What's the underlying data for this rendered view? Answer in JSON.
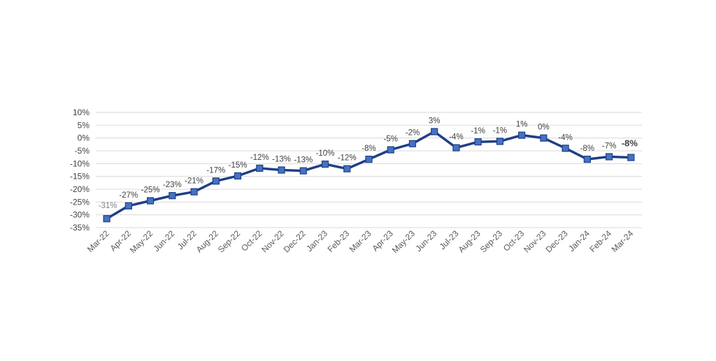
{
  "chart_data": {
    "type": "line",
    "title": "",
    "xlabel": "",
    "ylabel": "",
    "categories": [
      "Mar-22",
      "Apr-22",
      "May-22",
      "Jun-22",
      "Jul-22",
      "Aug-22",
      "Sep-22",
      "Oct-22",
      "Nov-22",
      "Dec-22",
      "Jan-23",
      "Feb-23",
      "Mar-23",
      "Apr-23",
      "May-23",
      "Jun-23",
      "Jul-23",
      "Aug-23",
      "Sep-23",
      "Oct-23",
      "Nov-23",
      "Dec-23",
      "Jan-24",
      "Feb-24",
      "Mar-24"
    ],
    "series": [
      {
        "values": [
          -31.5,
          -26.5,
          -24.5,
          -22.5,
          -21,
          -16.8,
          -14.8,
          -11.8,
          -12.5,
          -12.8,
          -10.2,
          -12,
          -8.3,
          -4.6,
          -2.2,
          2.5,
          -3.8,
          -1.5,
          -1.3,
          1.1,
          0,
          -4,
          -8.3,
          -7.3,
          -7.6
        ],
        "labels": [
          "-31%",
          "-27%",
          "-25%",
          "-23%",
          "-21%",
          "-17%",
          "-15%",
          "-12%",
          "-13%",
          "-13%",
          "-10%",
          "-12%",
          "-8%",
          "-5%",
          "-2%",
          "3%",
          "-4%",
          "-1%",
          "-1%",
          "1%",
          "0%",
          "-4%",
          "-8%",
          "-7%",
          "-8%"
        ]
      }
    ],
    "y_ticks": [
      "10%",
      "5%",
      "0%",
      "-5%",
      "-10%",
      "-15%",
      "-20%",
      "-25%",
      "-30%",
      "-35%"
    ],
    "ylim": [
      -35,
      10
    ],
    "grid": true,
    "legend": "none",
    "colors": {
      "line": "#1f3f86",
      "marker_fill": "#4472c4",
      "marker_stroke": "#1f3f86",
      "grid": "#d9d9d9",
      "highlight_label": "#2e75b6"
    }
  }
}
